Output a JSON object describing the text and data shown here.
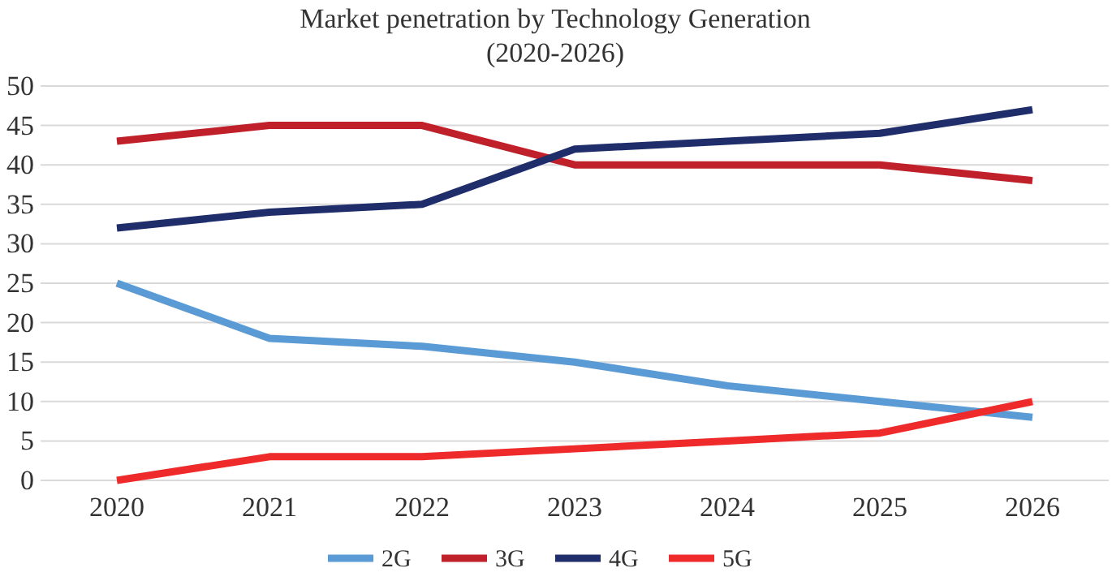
{
  "chart_data": {
    "type": "line",
    "title": "Market penetration by Technology Generation",
    "subtitle": "(2020-2026)",
    "categories": [
      "2020",
      "2021",
      "2022",
      "2023",
      "2024",
      "2025",
      "2026"
    ],
    "series": [
      {
        "name": "2G",
        "color": "#5b9bd5",
        "values": [
          25,
          18,
          17,
          15,
          12,
          10,
          8
        ]
      },
      {
        "name": "3G",
        "color": "#c0202a",
        "values": [
          43,
          45,
          45,
          40,
          40,
          40,
          38
        ]
      },
      {
        "name": "4G",
        "color": "#1f2d6b",
        "values": [
          32,
          34,
          35,
          42,
          43,
          44,
          47
        ]
      },
      {
        "name": "5G",
        "color": "#ee2a2a",
        "values": [
          0,
          3,
          3,
          4,
          5,
          6,
          10
        ]
      }
    ],
    "ylim": [
      0,
      50
    ],
    "yticks": [
      0,
      5,
      10,
      15,
      20,
      25,
      30,
      35,
      40,
      45,
      50
    ],
    "grid": "y",
    "legend": "bottom",
    "marker": "none",
    "line_style": "solid"
  }
}
